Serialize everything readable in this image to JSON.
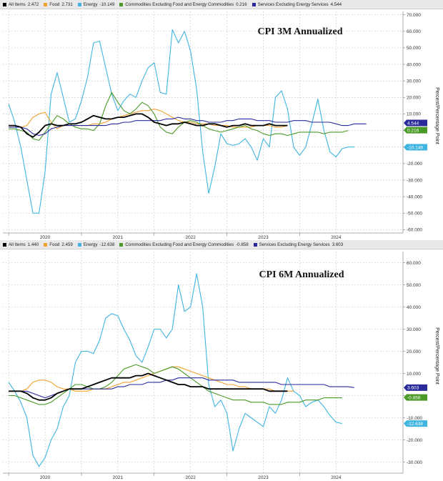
{
  "colors": {
    "all_items": "#000000",
    "food": "#f0a030",
    "energy": "#3fb4e0",
    "commodities": "#4a9a28",
    "services": "#2a2a9a"
  },
  "chart_data": [
    {
      "type": "line",
      "title": "CPI 3M Annualized",
      "ylabel": "Percent/Percentage Point",
      "ylim": [
        -62,
        72
      ],
      "ytick_labels": [
        "70.000",
        "60.000",
        "50.000",
        "40.000",
        "30.000",
        "20.000",
        "10.000",
        "0.000",
        "-10.000",
        "-20.000",
        "-30.000",
        "-40.000",
        "-50.000",
        "-60.000"
      ],
      "ytick_values": [
        70,
        60,
        50,
        40,
        30,
        20,
        10,
        0,
        -10,
        -20,
        -30,
        -40,
        -50,
        -60
      ],
      "xtick_labels": [
        "2020",
        "2021",
        "2022",
        "2023",
        "2024"
      ],
      "xtick_values": [
        2020,
        2021,
        2022,
        2023,
        2024
      ],
      "xlim": [
        2019.42,
        2024.92
      ],
      "x_start": 2019.5,
      "x_step": 0.083333,
      "grid": true,
      "legend_position": "top",
      "legend": [
        {
          "key": "all_items",
          "label": "All Items",
          "value": "2.472"
        },
        {
          "key": "food",
          "label": "Food",
          "value": "2.731"
        },
        {
          "key": "energy",
          "label": "Energy",
          "value": "-10.149"
        },
        {
          "key": "commodities",
          "label": "Commodities Excluding Food and Energy Commodities",
          "value": "0.216"
        },
        {
          "key": "services",
          "label": "Services Excluding Energy Services",
          "value": "4.544"
        }
      ],
      "value_tags": [
        {
          "key": "services",
          "text": "4.544",
          "value": 4.544
        },
        {
          "key": "commodities",
          "text": "0.216",
          "value": 0.216
        },
        {
          "key": "energy",
          "text": "-10.149",
          "value": -10.149
        }
      ],
      "series": [
        {
          "key": "all_items",
          "name": "All Items",
          "values": [
            3,
            3,
            2,
            -2,
            -4,
            -1,
            3,
            4,
            3,
            3,
            4,
            4,
            5,
            7,
            9,
            8,
            7,
            7,
            8,
            8,
            9,
            10,
            10,
            8,
            5,
            4,
            3,
            4,
            4,
            5,
            4,
            3,
            3,
            4,
            4,
            3,
            2,
            3,
            3,
            4,
            3,
            3,
            3,
            4,
            3,
            3,
            3
          ]
        },
        {
          "key": "food",
          "name": "Food",
          "values": [
            2,
            2,
            2,
            3,
            8,
            10,
            11,
            5,
            1,
            3,
            3,
            3,
            3,
            3,
            4,
            4,
            5,
            7,
            8,
            9,
            10,
            11,
            12,
            12,
            13,
            12,
            10,
            8,
            6,
            5,
            5,
            4,
            4,
            4,
            3,
            3,
            3,
            2,
            2,
            2,
            2,
            3,
            3,
            3,
            2,
            2,
            3
          ]
        },
        {
          "key": "energy",
          "name": "Energy",
          "values": [
            16,
            5,
            -10,
            -30,
            -50,
            -50,
            -25,
            22,
            35,
            20,
            5,
            7,
            18,
            32,
            53,
            54,
            38,
            22,
            12,
            18,
            22,
            20,
            30,
            38,
            41,
            23,
            22,
            61,
            53,
            60,
            48,
            25,
            -13,
            -38,
            -22,
            -2,
            -8,
            -9,
            -8,
            -5,
            -10,
            -18,
            -5,
            -10,
            20,
            24,
            13,
            -10,
            -15,
            -10,
            4,
            19,
            0,
            -13,
            -16,
            -11,
            -10,
            -10
          ]
        },
        {
          "key": "commodities",
          "name": "Commodities Excluding Food and Energy Commodities",
          "values": [
            1,
            1,
            0,
            -1,
            -5,
            -6,
            -1,
            4,
            9,
            7,
            4,
            2,
            1,
            1,
            0,
            4,
            15,
            23,
            17,
            12,
            10,
            13,
            17,
            15,
            10,
            2,
            -1,
            -2,
            2,
            5,
            6,
            5,
            3,
            1,
            0,
            -1,
            0,
            1,
            2,
            3,
            1,
            0,
            -2,
            -3,
            -2,
            -2,
            -3,
            -2,
            -1,
            -1,
            -1,
            -1,
            -2,
            -1,
            -1,
            -1,
            0
          ]
        },
        {
          "key": "services",
          "name": "Services Excluding Energy Services",
          "values": [
            2,
            2,
            2,
            1,
            -2,
            -3,
            -2,
            1,
            2,
            3,
            3,
            3,
            3,
            3,
            3,
            3,
            3,
            4,
            4,
            5,
            5,
            6,
            6,
            6,
            6,
            6,
            7,
            7,
            8,
            7,
            7,
            6,
            6,
            5,
            5,
            5,
            6,
            6,
            7,
            7,
            7,
            6,
            6,
            6,
            5,
            5,
            5,
            6,
            6,
            6,
            5,
            5,
            5,
            5,
            4,
            3,
            3,
            4,
            4,
            4
          ]
        }
      ]
    },
    {
      "type": "line",
      "title": "CPI 6M Annualized",
      "ylabel": "Percent/Percentage Point",
      "ylim": [
        -35,
        65
      ],
      "ytick_labels": [
        "60.000",
        "50.000",
        "40.000",
        "30.000",
        "20.000",
        "10.000",
        "0.000",
        "-10.000",
        "-20.000",
        "-30.000"
      ],
      "ytick_values": [
        60,
        50,
        40,
        30,
        20,
        10,
        0,
        -10,
        -20,
        -30
      ],
      "xtick_labels": [
        "2020",
        "2021",
        "2022",
        "2023",
        "2024"
      ],
      "xtick_values": [
        2020,
        2021,
        2022,
        2023,
        2024
      ],
      "xlim": [
        2019.42,
        2024.92
      ],
      "x_start": 2019.5,
      "x_step": 0.083333,
      "grid": true,
      "legend_position": "top",
      "legend": [
        {
          "key": "all_items",
          "label": "All Items",
          "value": "1.440"
        },
        {
          "key": "food",
          "label": "Food",
          "value": "2.459"
        },
        {
          "key": "energy",
          "label": "Energy",
          "value": "-12.638"
        },
        {
          "key": "commodities",
          "label": "Commodities Excluding Food and Energy Commodities",
          "value": "-0.858"
        },
        {
          "key": "services",
          "label": "Services Excluding Energy Services",
          "value": "3.603"
        }
      ],
      "value_tags": [
        {
          "key": "services",
          "text": "3.603",
          "value": 3.603
        },
        {
          "key": "commodities",
          "text": "-0.858",
          "value": -0.858
        },
        {
          "key": "energy",
          "text": "-12.638",
          "value": -12.638
        }
      ],
      "series": [
        {
          "key": "all_items",
          "name": "All Items",
          "values": [
            2,
            2,
            2,
            1,
            -1,
            -2,
            -2,
            -1,
            1,
            2,
            3,
            3,
            3,
            4,
            5,
            6,
            7,
            8,
            8,
            8,
            8,
            9,
            9,
            10,
            9,
            8,
            7,
            6,
            5,
            5,
            4,
            4,
            4,
            3,
            3,
            3,
            3,
            3,
            3,
            3,
            3,
            3,
            3,
            2,
            2,
            2,
            2
          ]
        },
        {
          "key": "food",
          "name": "Food",
          "values": [
            2,
            2,
            2,
            3,
            6,
            7,
            7,
            6,
            4,
            3,
            3,
            2,
            2,
            2,
            3,
            3,
            3,
            4,
            5,
            6,
            6,
            7,
            8,
            9,
            10,
            11,
            12,
            13,
            13,
            12,
            11,
            10,
            9,
            8,
            7,
            6,
            5,
            5,
            4,
            4,
            3,
            3,
            3,
            3,
            2,
            2,
            2,
            2
          ]
        },
        {
          "key": "energy",
          "name": "Energy",
          "values": [
            6,
            2,
            -3,
            -10,
            -27,
            -32,
            -28,
            -20,
            -15,
            -5,
            0,
            15,
            20,
            20,
            19,
            25,
            35,
            37,
            36,
            30,
            25,
            18,
            15,
            22,
            30,
            30,
            26,
            30,
            50,
            38,
            40,
            55,
            40,
            5,
            -5,
            -2,
            -8,
            -25,
            -15,
            -8,
            -10,
            -12,
            -14,
            -5,
            -8,
            -2,
            8,
            2,
            0,
            -5,
            -3,
            -2,
            -5,
            -9,
            -12,
            -12.6
          ]
        },
        {
          "key": "commodities",
          "name": "Commodities Excluding Food and Energy Commodities",
          "values": [
            0,
            0,
            -1,
            -2,
            -3,
            -4,
            -4,
            -3,
            -1,
            1,
            3,
            5,
            5,
            4,
            3,
            3,
            4,
            6,
            9,
            12,
            13,
            14,
            13,
            12,
            10,
            11,
            12,
            13,
            12,
            10,
            8,
            6,
            4,
            2,
            1,
            0,
            -1,
            -2,
            -2,
            -2,
            -3,
            -3,
            -3,
            -4,
            -4,
            -4,
            -3,
            -3,
            -3,
            -2,
            -2,
            -2,
            -1,
            -1,
            -1,
            -1
          ]
        },
        {
          "key": "services",
          "name": "Services Excluding Energy Services",
          "values": [
            2,
            2,
            2,
            2,
            1,
            0,
            -1,
            0,
            1,
            2,
            3,
            3,
            3,
            3,
            3,
            3,
            3,
            3,
            4,
            4,
            5,
            5,
            5,
            6,
            6,
            6,
            7,
            7,
            8,
            8,
            8,
            8,
            8,
            7,
            7,
            7,
            7,
            7,
            6,
            6,
            6,
            6,
            6,
            6,
            6,
            5,
            5,
            5,
            5,
            5,
            5,
            5,
            5,
            4,
            4,
            4,
            4,
            3.6
          ]
        }
      ]
    }
  ]
}
